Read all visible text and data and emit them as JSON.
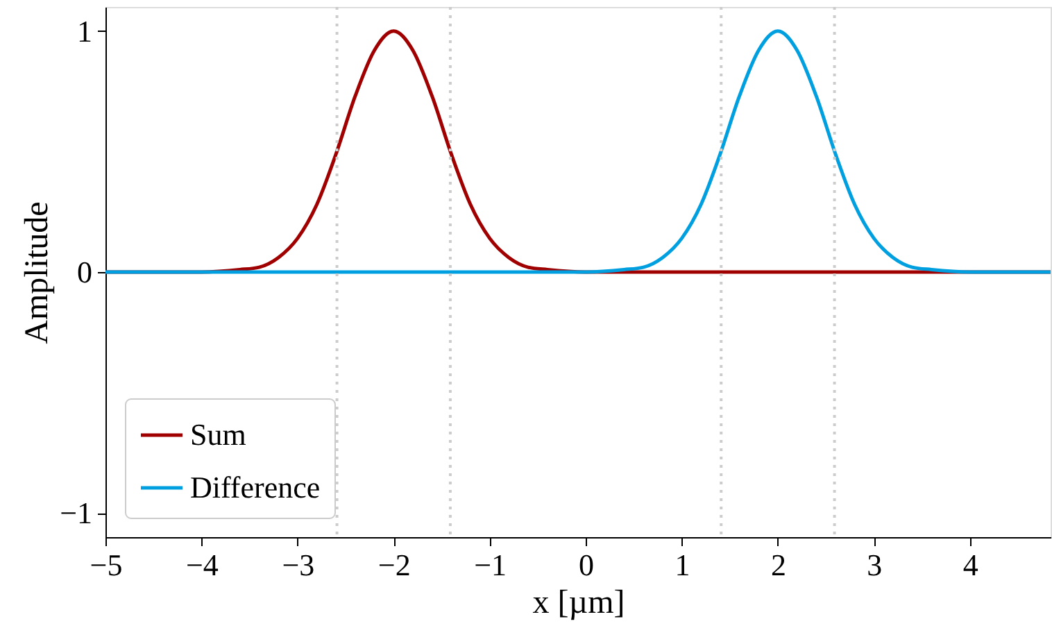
{
  "chart_data": {
    "type": "line",
    "xlabel": "x [µm]",
    "ylabel": "Amplitude",
    "xlim": [
      -5,
      4.84
    ],
    "ylim": [
      -1.1,
      1.1
    ],
    "xticks": [
      {
        "value": -5,
        "label": "−5"
      },
      {
        "value": -4,
        "label": "−4"
      },
      {
        "value": -3,
        "label": "−3"
      },
      {
        "value": -2,
        "label": "−2"
      },
      {
        "value": -1,
        "label": "−1"
      },
      0,
      1,
      2,
      3,
      4
    ],
    "yticks": [
      -1,
      0,
      1
    ],
    "grid": false,
    "legend": "bottom left",
    "line_style": "solid",
    "marker": "none",
    "series": [
      {
        "name": "Sum",
        "color": "#a00000",
        "x": [
          -5,
          -4,
          -3.6,
          -3.4,
          -3.2,
          -3.0,
          -2.8,
          -2.6,
          -2.4,
          -2.2,
          -2.0,
          -1.8,
          -1.6,
          -1.4,
          -1.2,
          -1.0,
          -0.8,
          -0.6,
          -0.4,
          0,
          1,
          2,
          3,
          4,
          4.84
        ],
        "values": [
          0,
          0,
          0.01,
          0.02,
          0.06,
          0.14,
          0.28,
          0.49,
          0.73,
          0.92,
          1,
          0.92,
          0.73,
          0.49,
          0.28,
          0.14,
          0.06,
          0.02,
          0.01,
          0,
          0,
          0,
          0,
          0,
          0
        ]
      },
      {
        "name": "Difference",
        "color": "#00a0e0",
        "x": [
          -5,
          -4,
          -3,
          -2,
          -1,
          0,
          0.4,
          0.6,
          0.8,
          1.0,
          1.2,
          1.4,
          1.6,
          1.8,
          2.0,
          2.2,
          2.4,
          2.6,
          2.8,
          3.0,
          3.2,
          3.4,
          3.6,
          4,
          4.84
        ],
        "values": [
          0,
          0,
          0,
          0,
          0,
          0,
          0.01,
          0.02,
          0.06,
          0.14,
          0.28,
          0.49,
          0.73,
          0.92,
          1,
          0.92,
          0.73,
          0.49,
          0.28,
          0.14,
          0.06,
          0.02,
          0.01,
          0,
          0
        ]
      }
    ],
    "ref_lines": [
      {
        "axis": "x",
        "value": -2.59,
        "color": "#cccccc",
        "line_style": "dotted"
      },
      {
        "axis": "x",
        "value": -1.41,
        "color": "#cccccc",
        "line_style": "dotted"
      },
      {
        "axis": "x",
        "value": 1.41,
        "color": "#cccccc",
        "line_style": "dotted"
      },
      {
        "axis": "x",
        "value": 2.59,
        "color": "#cccccc",
        "line_style": "dotted"
      }
    ]
  }
}
